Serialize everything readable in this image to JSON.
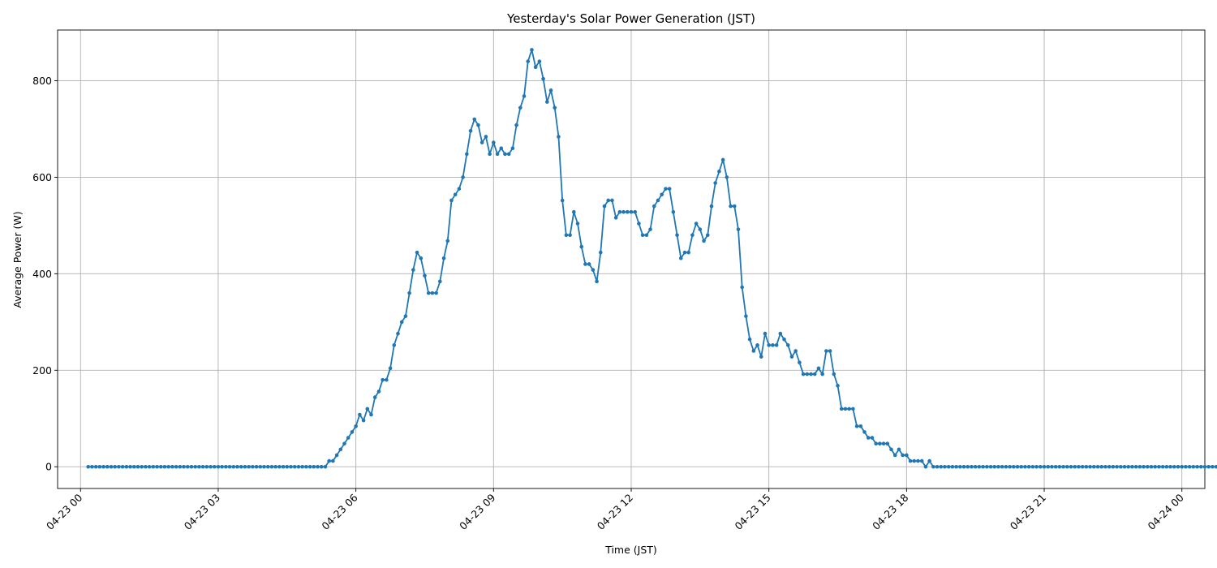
{
  "chart_data": {
    "type": "line",
    "title": "Yesterday's Solar Power Generation (JST)",
    "xlabel": "Time (JST)",
    "ylabel": "Average Power (W)",
    "xlim": [
      "04-22 23:30",
      "04-24 00:30"
    ],
    "ylim": [
      -45,
      905
    ],
    "x_ticks": [
      "04-23 00",
      "04-23 03",
      "04-23 06",
      "04-23 09",
      "04-23 12",
      "04-23 15",
      "04-23 18",
      "04-23 21",
      "04-24 00"
    ],
    "y_ticks": [
      0,
      200,
      400,
      600,
      800
    ],
    "grid": true,
    "series": [
      {
        "color": "#1f77b4",
        "marker": "circle",
        "interval_minutes": 5,
        "start_time": "04-23 00:10",
        "values": [
          0,
          0,
          0,
          0,
          0,
          0,
          0,
          0,
          0,
          0,
          0,
          0,
          0,
          0,
          0,
          0,
          0,
          0,
          0,
          0,
          0,
          0,
          0,
          0,
          0,
          0,
          0,
          0,
          0,
          0,
          0,
          0,
          0,
          0,
          0,
          0,
          0,
          0,
          0,
          0,
          0,
          0,
          0,
          0,
          0,
          0,
          0,
          0,
          0,
          0,
          0,
          0,
          0,
          0,
          0,
          0,
          0,
          0,
          0,
          0,
          0,
          0,
          0,
          12,
          12,
          24,
          36,
          48,
          60,
          72,
          84,
          108,
          96,
          120,
          108,
          144,
          156,
          180,
          180,
          204,
          252,
          276,
          300,
          312,
          360,
          408,
          444,
          432,
          396,
          360,
          360,
          360,
          384,
          432,
          468,
          552,
          564,
          576,
          600,
          648,
          696,
          720,
          708,
          672,
          684,
          648,
          672,
          648,
          660,
          648,
          648,
          660,
          708,
          744,
          768,
          840,
          864,
          828,
          840,
          804,
          756,
          780,
          744,
          684,
          552,
          480,
          480,
          528,
          504,
          456,
          420,
          420,
          408,
          384,
          444,
          540,
          552,
          552,
          516,
          528,
          528,
          528,
          528,
          528,
          504,
          480,
          480,
          492,
          540,
          552,
          564,
          576,
          576,
          528,
          480,
          432,
          444,
          444,
          480,
          504,
          492,
          468,
          480,
          540,
          588,
          612,
          636,
          600,
          540,
          540,
          492,
          372,
          312,
          264,
          240,
          252,
          228,
          276,
          252,
          252,
          252,
          276,
          264,
          252,
          228,
          240,
          216,
          192,
          192,
          192,
          192,
          204,
          192,
          240,
          240,
          192,
          168,
          120,
          120,
          120,
          120,
          84,
          84,
          72,
          60,
          60,
          48,
          48,
          48,
          48,
          36,
          24,
          36,
          24,
          24,
          12,
          12,
          12,
          12,
          0,
          12,
          0,
          0,
          0,
          0,
          0,
          0,
          0,
          0,
          0,
          0,
          0,
          0,
          0,
          0,
          0,
          0,
          0,
          0,
          0,
          0,
          0,
          0,
          0,
          0,
          0,
          0,
          0,
          0,
          0,
          0,
          0,
          0,
          0,
          0,
          0,
          0,
          0,
          0,
          0,
          0,
          0,
          0,
          0,
          0,
          0,
          0,
          0,
          0,
          0,
          0,
          0,
          0,
          0,
          0,
          0,
          0,
          0,
          0,
          0,
          0,
          0,
          0,
          0,
          0,
          0,
          0,
          0,
          0,
          0,
          0,
          0,
          0,
          0,
          0,
          0,
          0,
          0,
          0,
          0,
          0,
          0,
          0,
          0,
          0,
          0,
          0,
          0,
          0,
          0,
          0,
          0,
          0,
          0,
          0,
          0,
          0,
          0,
          0,
          0,
          0,
          0,
          0,
          0,
          0,
          0,
          0,
          0,
          0,
          0,
          0,
          0,
          0,
          0,
          0,
          0,
          0,
          0,
          0
        ]
      }
    ]
  }
}
